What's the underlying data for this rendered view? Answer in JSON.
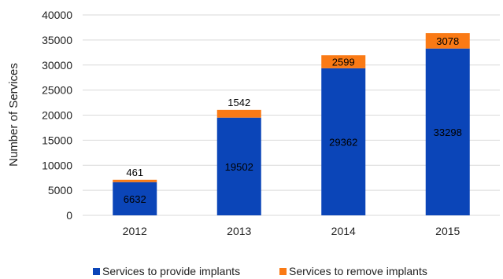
{
  "chart_data": {
    "type": "bar",
    "stacked": true,
    "categories": [
      "2012",
      "2013",
      "2014",
      "2015"
    ],
    "series": [
      {
        "name": "Services to provide implants",
        "values": [
          6632,
          19502,
          29362,
          33298
        ],
        "color": "#0b45b8"
      },
      {
        "name": "Services to remove implants",
        "values": [
          461,
          1542,
          2599,
          3078
        ],
        "color": "#fa7a15"
      }
    ],
    "ylabel": "Number of Services",
    "xlabel": "",
    "ylim": [
      0,
      40000
    ],
    "yticks": [
      0,
      5000,
      10000,
      15000,
      20000,
      25000,
      30000,
      35000,
      40000
    ],
    "grid": true,
    "legend_position": "bottom"
  }
}
